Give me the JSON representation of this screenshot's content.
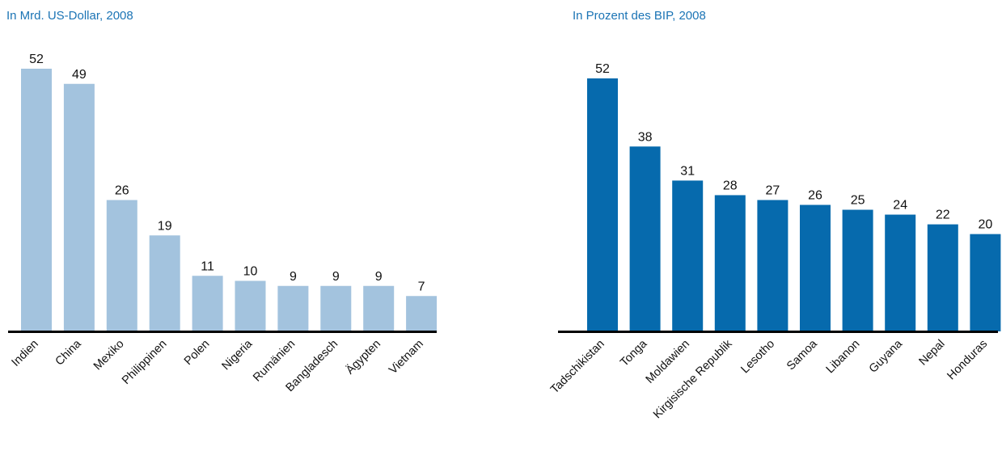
{
  "chart_data": [
    {
      "type": "bar",
      "title": "In Mrd. US-Dollar, 2008",
      "categories": [
        "Indien",
        "China",
        "Mexiko",
        "Philippinen",
        "Polen",
        "Nigeria",
        "Rumänien",
        "Bangladesch",
        "Ägypten",
        "Vietnam"
      ],
      "values": [
        52,
        49,
        26,
        19,
        11,
        10,
        9,
        9,
        9,
        7
      ],
      "bar_color": "#a3c3de",
      "ylim": [
        0,
        52
      ],
      "grid": false
    },
    {
      "type": "bar",
      "title": "In Prozent des BIP, 2008",
      "categories": [
        "Tadschikistan",
        "Tonga",
        "Moldawien",
        "Kirgisische Republik",
        "Lesotho",
        "Samoa",
        "Libanon",
        "Guyana",
        "Nepal",
        "Honduras"
      ],
      "values": [
        52,
        38,
        31,
        28,
        27,
        26,
        25,
        24,
        22,
        20
      ],
      "bar_color": "#066aad",
      "ylim": [
        0,
        52
      ],
      "grid": false
    }
  ],
  "colors": {
    "title": "#1b74b5",
    "axis": "#000000"
  }
}
